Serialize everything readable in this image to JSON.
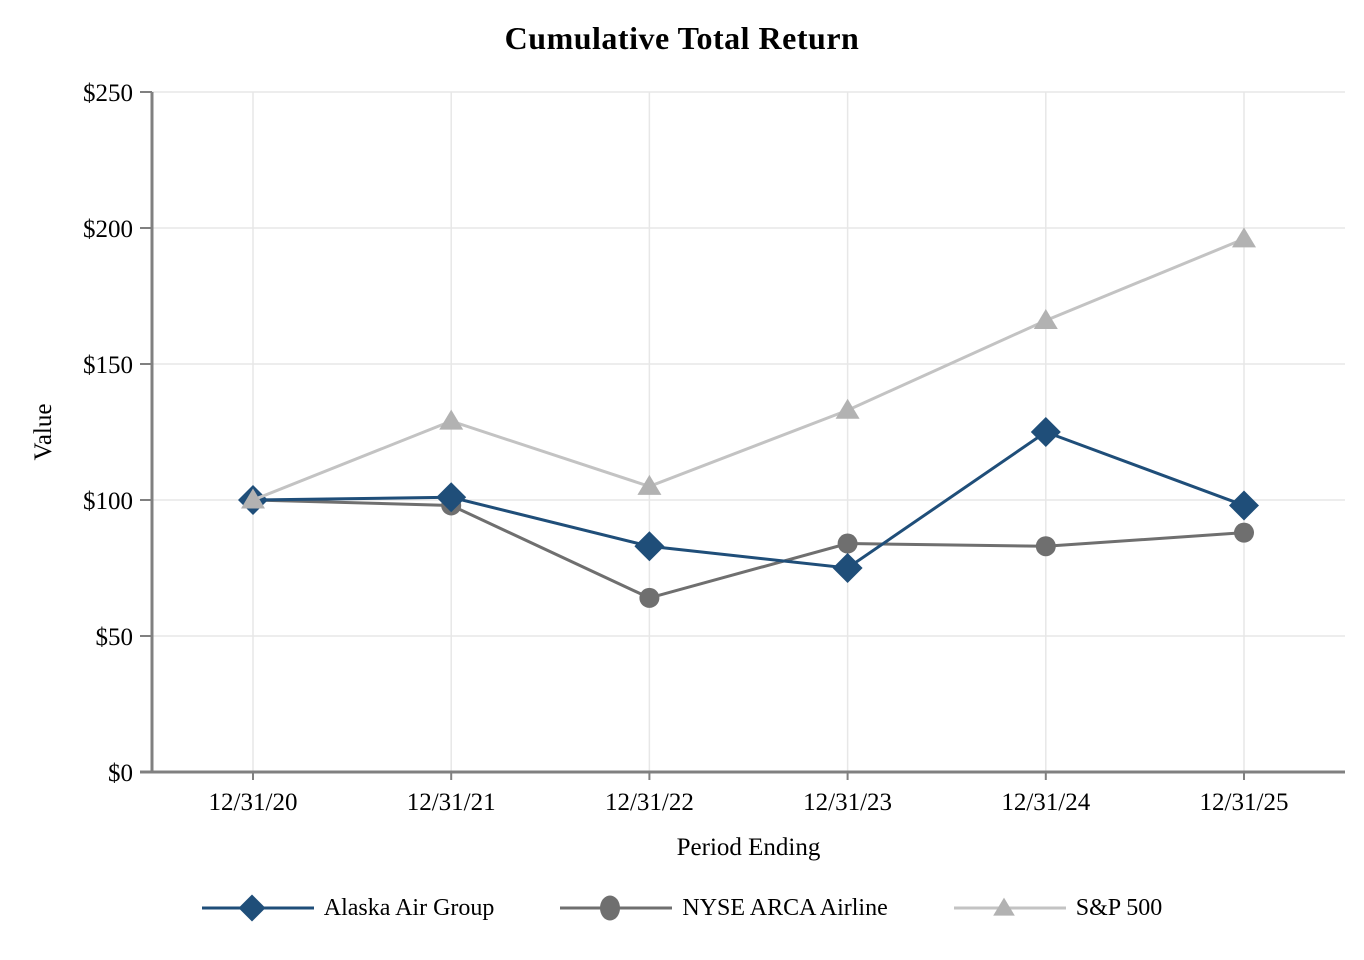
{
  "title": "Cumulative Total Return",
  "chart_data": {
    "type": "line",
    "title": "Cumulative Total Return",
    "xlabel": "Period Ending",
    "ylabel": "Value",
    "categories": [
      "12/31/20",
      "12/31/21",
      "12/31/22",
      "12/31/23",
      "12/31/24",
      "12/31/25"
    ],
    "series": [
      {
        "name": "Alaska Air Group",
        "marker": "diamond",
        "color": "#1f4e79",
        "values": [
          100,
          101,
          83,
          75,
          125,
          98
        ]
      },
      {
        "name": "NYSE ARCA Airline",
        "marker": "circle",
        "color": "#6f6f6f",
        "values": [
          100,
          98,
          64,
          84,
          83,
          88
        ]
      },
      {
        "name": "S&P 500",
        "marker": "triangle",
        "color": "#b2b2b2",
        "line_color": "#c3c3c3",
        "values": [
          100,
          129,
          105,
          133,
          166,
          196
        ]
      }
    ],
    "ylim": [
      0,
      250
    ],
    "yticks": [
      {
        "value": 0,
        "label": "$0"
      },
      {
        "value": 50,
        "label": "$50"
      },
      {
        "value": 100,
        "label": "$100"
      },
      {
        "value": 150,
        "label": "$150"
      },
      {
        "value": 200,
        "label": "$200"
      },
      {
        "value": 250,
        "label": "$250"
      }
    ],
    "grid": true,
    "legend_position": "bottom"
  },
  "colors": {
    "background": "#ffffff",
    "axis": "#808080",
    "gridline": "#e7e7e7",
    "text": "#000000"
  }
}
